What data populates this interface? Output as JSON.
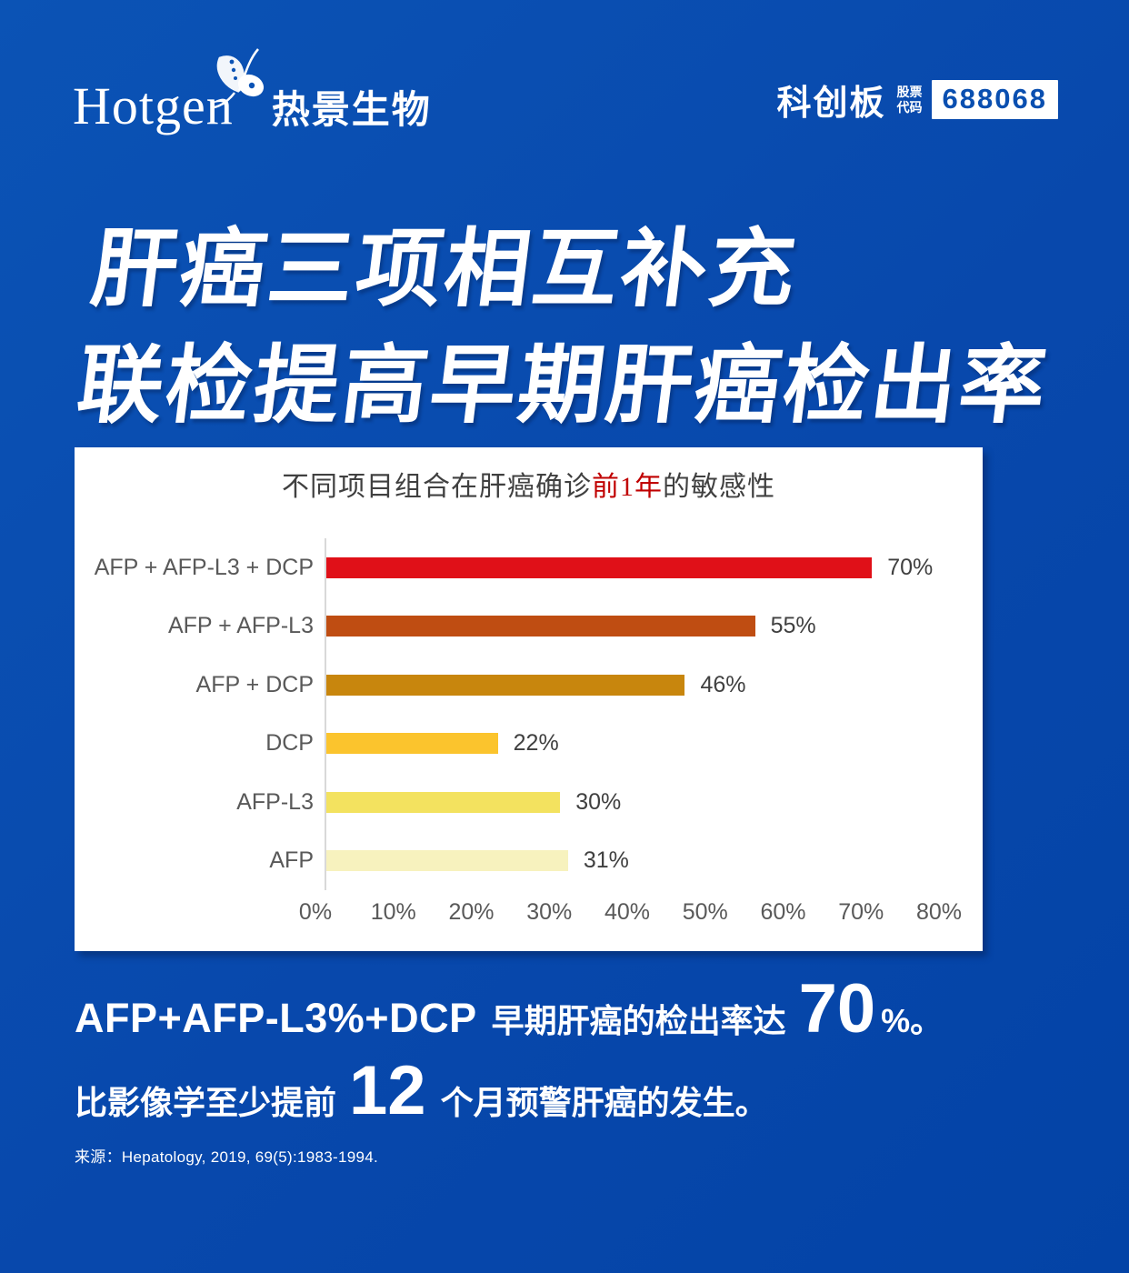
{
  "brand": {
    "logo_en": "Hotgen",
    "logo_cn": "热景生物",
    "board": "科创板",
    "stock_label_line1": "股票",
    "stock_label_line2": "代码",
    "stock_code": "688068"
  },
  "headline": {
    "line1": "肝癌三项相互补充",
    "line2": "联检提高早期肝癌检出率"
  },
  "chart_data": {
    "type": "bar",
    "orientation": "horizontal",
    "title_prefix": "不同项目组合在肝癌确诊",
    "title_highlight": "前1年",
    "title_suffix": "的敏感性",
    "categories": [
      "AFP + AFP-L3 + DCP",
      "AFP + AFP-L3",
      "AFP + DCP",
      "DCP",
      "AFP-L3",
      "AFP"
    ],
    "values": [
      70,
      55,
      46,
      22,
      30,
      31
    ],
    "value_labels": [
      "70%",
      "55%",
      "46%",
      "22%",
      "30%",
      "31%"
    ],
    "bar_colors": [
      "#E01018",
      "#BF4D12",
      "#C8860D",
      "#FBC42D",
      "#F3E25F",
      "#F7F2BE"
    ],
    "xlim": [
      0,
      80
    ],
    "x_ticks": [
      "0%",
      "10%",
      "20%",
      "30%",
      "40%",
      "50%",
      "60%",
      "70%",
      "80%"
    ],
    "grid": false,
    "legend": false,
    "title_highlight_color": "#C00000"
  },
  "summary": {
    "line1_lead": "AFP+AFP-L3%+DCP",
    "line1_mid": "早期肝癌的检出率达",
    "line1_big": "70",
    "line1_tail": "%。",
    "line2_pre": "比影像学至少提前",
    "line2_big": "12",
    "line2_post": "个月预警肝癌的发生。"
  },
  "footnote": {
    "label": "来源：",
    "text": "Hepatology, 2019, 69(5):1983-1994."
  },
  "colors": {
    "background_top": "#0B53B5",
    "background_bottom": "#0343A6",
    "panel": "#FFFFFF",
    "stock_code_text": "#0A4FB0"
  }
}
